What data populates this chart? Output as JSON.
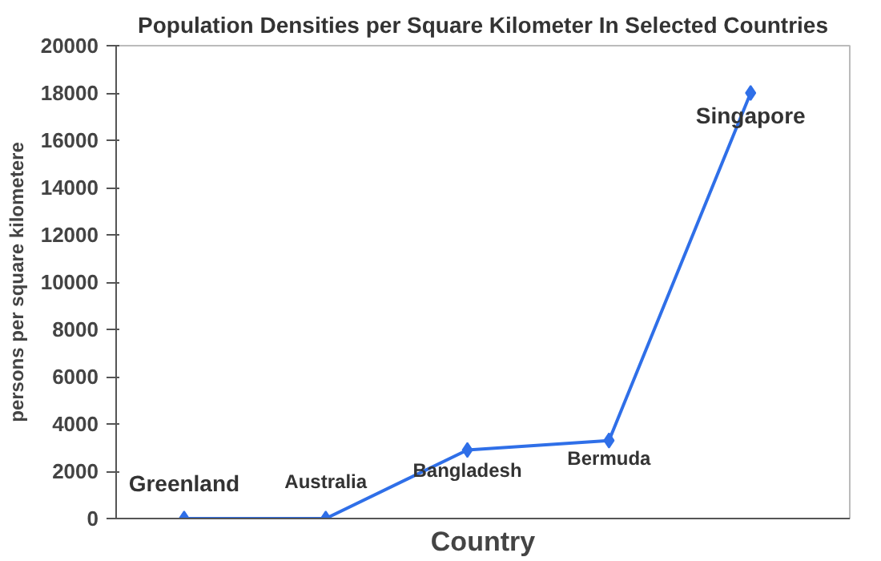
{
  "chart_data": {
    "type": "line",
    "title": "Population Densities per Square Kilometer In Selected Countries",
    "xlabel": "Country",
    "ylabel": "persons per square kilometere",
    "categories": [
      "Greenland",
      "Australia",
      "Bangladesh",
      "Bermuda",
      "Singapore"
    ],
    "series": [
      {
        "color": "#2f6fe8",
        "values": [
          0,
          0,
          2900,
          3300,
          18000
        ]
      }
    ],
    "ylim": [
      0,
      20000
    ],
    "yticks": [
      0,
      2000,
      4000,
      6000,
      8000,
      10000,
      12000,
      14000,
      16000,
      18000,
      20000
    ],
    "marker": "diamond",
    "grid": false
  }
}
